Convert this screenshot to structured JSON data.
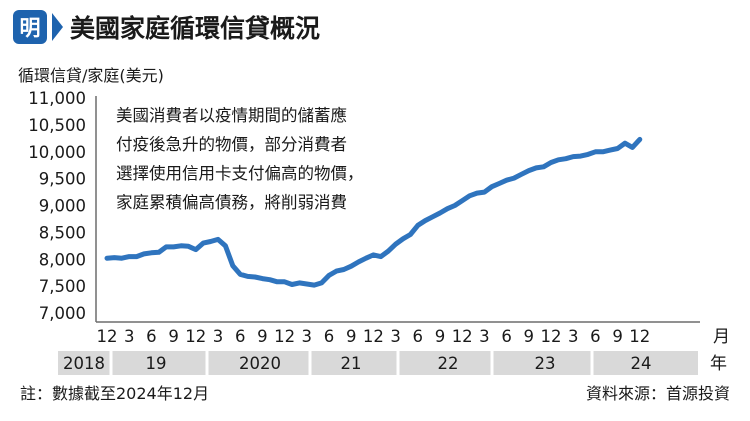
{
  "header": {
    "logo_char": "明",
    "title": "美國家庭循環信貸概況"
  },
  "colors": {
    "header_blue": "#1E63AE",
    "line_blue": "#2F74BE",
    "axis_gray": "#6d6d6d",
    "band_gray": "#d9d9d9",
    "text": "#1a1a1a"
  },
  "annotation": [
    "美國消費者以疫情期間的儲蓄應",
    "付疫後急升的物價，部分消費者",
    "選擇使用信用卡支付偏高的物價，",
    "家庭累積偏高債務，將削弱消費"
  ],
  "footer": {
    "note": "註：數據截至2024年12月",
    "source": "資料來源：首源投資"
  },
  "chart_data": {
    "type": "line",
    "ylabel": "循環信貸/家庭(美元)",
    "yticks": [
      "11,000",
      "10,500",
      "10,000",
      "9,500",
      "9,000",
      "8,500",
      "8,000",
      "7,500",
      "7,000"
    ],
    "ylim": [
      7000,
      11000
    ],
    "month_ticks": [
      "12",
      "3",
      "6",
      "9",
      "12",
      "3",
      "6",
      "9",
      "12",
      "3",
      "6",
      "9",
      "12",
      "3",
      "6",
      "9",
      "12",
      "3",
      "6",
      "9",
      "12",
      "3",
      "6",
      "9",
      "12"
    ],
    "month_unit": "月",
    "years": [
      "2018",
      "19",
      "2020",
      "21",
      "22",
      "23",
      "24"
    ],
    "year_unit": "年",
    "grid": false,
    "legend": "none",
    "series": [
      {
        "x": [
          "2018-12",
          "2019-01",
          "2019-02",
          "2019-03",
          "2019-04",
          "2019-05",
          "2019-06",
          "2019-07",
          "2019-08",
          "2019-09",
          "2019-10",
          "2019-11",
          "2019-12",
          "2020-01",
          "2020-02",
          "2020-03",
          "2020-04",
          "2020-05",
          "2020-06",
          "2020-07",
          "2020-08",
          "2020-09",
          "2020-10",
          "2020-11",
          "2020-12",
          "2021-01",
          "2021-02",
          "2021-03",
          "2021-04",
          "2021-05",
          "2021-06",
          "2021-07",
          "2021-08",
          "2021-09",
          "2021-10",
          "2021-11",
          "2021-12",
          "2022-01",
          "2022-02",
          "2022-03",
          "2022-04",
          "2022-05",
          "2022-06",
          "2022-07",
          "2022-08",
          "2022-09",
          "2022-10",
          "2022-11",
          "2022-12",
          "2023-01",
          "2023-02",
          "2023-03",
          "2023-04",
          "2023-05",
          "2023-06",
          "2023-07",
          "2023-08",
          "2023-09",
          "2023-10",
          "2023-11",
          "2023-12",
          "2024-01",
          "2024-02",
          "2024-03",
          "2024-04",
          "2024-05",
          "2024-06",
          "2024-07",
          "2024-08",
          "2024-09",
          "2024-10",
          "2024-11",
          "2024-12"
        ],
        "values": [
          8020,
          8030,
          8020,
          8050,
          8050,
          8100,
          8120,
          8130,
          8230,
          8230,
          8250,
          8240,
          8180,
          8300,
          8330,
          8370,
          8250,
          7880,
          7720,
          7680,
          7670,
          7640,
          7620,
          7580,
          7580,
          7530,
          7560,
          7540,
          7520,
          7560,
          7700,
          7780,
          7810,
          7870,
          7950,
          8020,
          8080,
          8050,
          8150,
          8280,
          8380,
          8460,
          8630,
          8720,
          8790,
          8860,
          8940,
          9000,
          9090,
          9180,
          9230,
          9250,
          9350,
          9410,
          9470,
          9510,
          9580,
          9650,
          9700,
          9720,
          9800,
          9850,
          9870,
          9910,
          9920,
          9950,
          10000,
          10000,
          10030,
          10060,
          10160,
          10080,
          10230
        ]
      }
    ]
  }
}
